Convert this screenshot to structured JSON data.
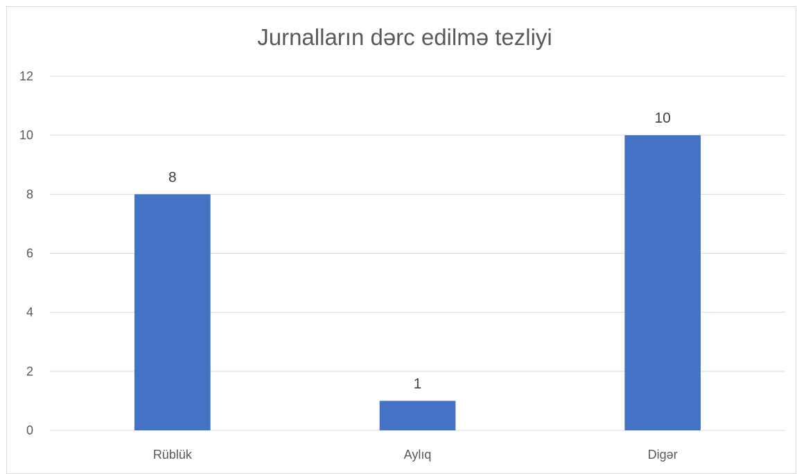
{
  "chart_data": {
    "type": "bar",
    "title": "Jurnalların dərc edilmə tezliyi",
    "categories": [
      "Rüblük",
      "Aylıq",
      "Digər"
    ],
    "values": [
      8,
      1,
      10
    ],
    "ylim": [
      0,
      12
    ],
    "yticks": [
      0,
      2,
      4,
      6,
      8,
      10,
      12
    ],
    "xlabel": "",
    "ylabel": "",
    "grid": true,
    "legend": "none",
    "bar_color": "#4472C4",
    "data_labels": true
  }
}
